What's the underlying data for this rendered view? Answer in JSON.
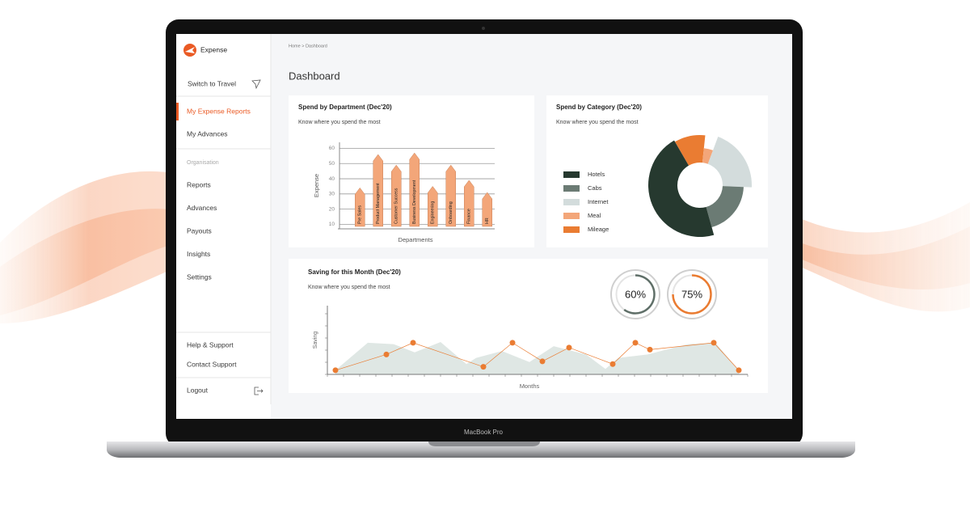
{
  "brand": "Expense",
  "laptop_label": "MacBook Pro",
  "sidebar": {
    "switch": "Switch to Travel",
    "personal": [
      "My Expense Reports",
      "My Advances"
    ],
    "section": "Organisation",
    "org": [
      "Reports",
      "Advances",
      "Payouts",
      "Insights",
      "Settings"
    ],
    "support": [
      "Help & Support",
      "Contact Support"
    ],
    "logout": "Logout"
  },
  "breadcrumb": "Home > Dashboard",
  "page_title": "Dashboard",
  "chart_data": [
    {
      "type": "bar",
      "title": "Spend by Department (Dec'20)",
      "subtitle": "Know where you spend the most",
      "y_label": "Expense",
      "x_label": "Departments",
      "categories": [
        "Pre Sales",
        "Product Management",
        "Customer Success",
        "Business Development",
        "Engineering",
        "Onboarding",
        "Finance",
        "HR"
      ],
      "values": [
        34,
        56,
        49,
        57,
        35,
        49,
        39,
        31
      ],
      "color": "#f3a679",
      "ylim": [
        7,
        64
      ],
      "yticks": [
        10,
        20,
        30,
        40,
        50,
        60
      ],
      "grid": true
    },
    {
      "type": "pie",
      "title": "Spend by Category (Dec'20)",
      "subtitle": "Know where you spend the most",
      "categories": [
        "Hotels",
        "Cabs",
        "Internet",
        "Meal",
        "Mileage"
      ],
      "values": [
        46,
        20,
        20,
        4,
        10
      ],
      "colors": [
        "#26392f",
        "#6b7b74",
        "#d3dcdc",
        "#f3a679",
        "#ea7c32"
      ]
    },
    {
      "type": "line",
      "title": "Saving for this Month (Dec'20)",
      "subtitle": "Know where you spend the most",
      "y_label": "Saving",
      "x_label": "Months",
      "xlim": [
        0,
        26
      ],
      "ylim": [
        0,
        10
      ],
      "series": [
        {
          "kind": "area",
          "color": "#dfe7e4",
          "x": [
            0.5,
            2.5,
            4.1,
            5.4,
            7,
            8.6,
            9.2,
            10.8,
            12.5,
            14,
            16,
            17.2,
            18,
            19.8,
            22.3,
            24,
            25.45
          ],
          "values": [
            0.6,
            4.6,
            4.4,
            3.2,
            4.7,
            1.5,
            2.4,
            3.4,
            1.8,
            4.1,
            2.9,
            0.8,
            2.4,
            2.9,
            4.4,
            4.6,
            0.6
          ]
        },
        {
          "kind": "line",
          "color": "#ea7c32",
          "x": [
            0.5,
            3.65,
            5.3,
            9.65,
            11.45,
            13.3,
            14.95,
            17.65,
            19.05,
            19.95,
            23.9,
            25.45
          ],
          "values": [
            0.6,
            2.9,
            4.6,
            1.1,
            4.6,
            1.9,
            3.9,
            1.5,
            4.6,
            3.6,
            4.6,
            0.6
          ]
        }
      ],
      "gauges": {
        "values": [
          60,
          75
        ],
        "value_labels": [
          "60%",
          "75%"
        ],
        "colors": [
          "#5f6f68",
          "#ea7c32"
        ]
      }
    }
  ]
}
